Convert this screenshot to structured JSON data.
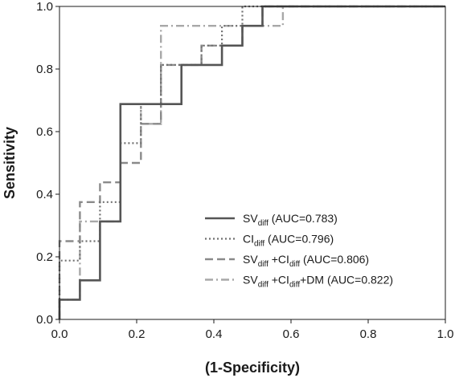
{
  "chart_data": {
    "type": "line",
    "xlabel": "(1-Specificity)",
    "ylabel": "Sensitivity",
    "xlim": [
      0,
      1
    ],
    "ylim": [
      0,
      1
    ],
    "xticks": [
      "0.0",
      "0.2",
      "0.4",
      "0.6",
      "0.8",
      "1.0"
    ],
    "yticks": [
      "0.0",
      "0.2",
      "0.4",
      "0.6",
      "0.8",
      "1.0"
    ],
    "grid": false,
    "legend_position": "bottom-right",
    "series": [
      {
        "name": "SVdiff (AUC=0.783)",
        "legend_main": "SV",
        "legend_sub": "diff",
        "legend_rest": " (AUC=0.783)",
        "style": "solid",
        "color": "#555555",
        "x": [
          0,
          0,
          0.053,
          0.053,
          0.105,
          0.105,
          0.158,
          0.158,
          0.316,
          0.316,
          0.421,
          0.421,
          0.474,
          0.474,
          0.526,
          0.526,
          1.0
        ],
        "y": [
          0,
          0.063,
          0.063,
          0.125,
          0.125,
          0.313,
          0.313,
          0.688,
          0.688,
          0.813,
          0.813,
          0.875,
          0.875,
          0.938,
          0.938,
          1.0,
          1.0
        ]
      },
      {
        "name": "CIdiff (AUC=0.796)",
        "legend_main": "CI",
        "legend_sub": "diff",
        "legend_rest": " (AUC=0.796)",
        "style": "dotted",
        "color": "#707070",
        "x": [
          0,
          0,
          0.053,
          0.053,
          0.105,
          0.105,
          0.158,
          0.158,
          0.211,
          0.211,
          0.263,
          0.263,
          0.368,
          0.368,
          0.421,
          0.421,
          0.474,
          0.474,
          0.526,
          0.526,
          1.0
        ],
        "y": [
          0,
          0.188,
          0.188,
          0.25,
          0.25,
          0.375,
          0.375,
          0.563,
          0.563,
          0.688,
          0.688,
          0.813,
          0.813,
          0.875,
          0.875,
          0.938,
          0.938,
          1.0,
          1.0,
          1.0,
          1.0
        ]
      },
      {
        "name": "SVdiff +CIdiff (AUC=0.806)",
        "legend_main": "SV",
        "legend_sub": "diff",
        "legend_mid": " +CI",
        "legend_sub2": "diff",
        "legend_rest": "  (AUC=0.806)",
        "style": "dashed",
        "color": "#8a8a8a",
        "x": [
          0,
          0,
          0.053,
          0.053,
          0.105,
          0.105,
          0.158,
          0.158,
          0.211,
          0.211,
          0.263,
          0.263,
          0.368,
          0.368,
          0.474,
          0.474,
          0.526,
          0.526,
          1.0
        ],
        "y": [
          0,
          0.25,
          0.25,
          0.375,
          0.375,
          0.438,
          0.438,
          0.5,
          0.5,
          0.625,
          0.625,
          0.813,
          0.813,
          0.875,
          0.875,
          0.938,
          0.938,
          1.0,
          1.0
        ]
      },
      {
        "name": "SVdiff +CIdiff+DM (AUC=0.822)",
        "legend_main": "SV",
        "legend_sub": "diff",
        "legend_mid": " +CI",
        "legend_sub2": "diff",
        "legend_rest": "+DM (AUC=0.822)",
        "style": "dashdot",
        "color": "#a8a8a8",
        "x": [
          0,
          0,
          0.053,
          0.053,
          0.158,
          0.158,
          0.211,
          0.211,
          0.263,
          0.263,
          0.579,
          0.579,
          1.0
        ],
        "y": [
          0,
          0.063,
          0.063,
          0.313,
          0.313,
          0.688,
          0.688,
          0.625,
          0.625,
          0.938,
          0.938,
          1.0,
          1.0
        ]
      }
    ]
  }
}
